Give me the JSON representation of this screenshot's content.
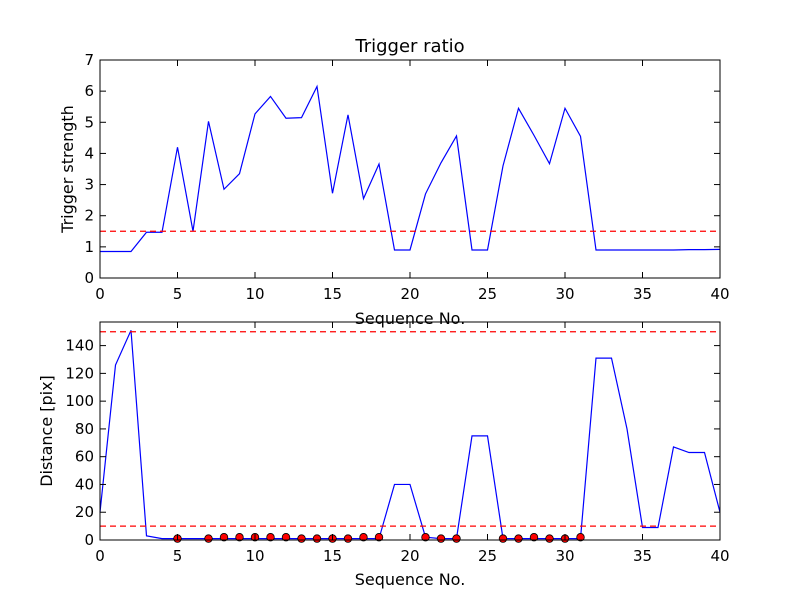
{
  "chart_data": [
    {
      "type": "line",
      "title": "Trigger ratio",
      "xlabel": "Sequence No.",
      "ylabel": "Trigger strength",
      "xlim": [
        0,
        40
      ],
      "ylim": [
        0,
        7
      ],
      "xticks": [
        "0",
        "5",
        "10",
        "15",
        "20",
        "25",
        "30",
        "35",
        "40"
      ],
      "yticks": [
        "0",
        "1",
        "2",
        "3",
        "4",
        "5",
        "6",
        "7"
      ],
      "grid": false,
      "series": [
        {
          "color": "#0000ff",
          "style": "solid",
          "x": [
            0,
            1,
            2,
            3,
            4,
            5,
            6,
            7,
            8,
            9,
            10,
            11,
            12,
            13,
            14,
            15,
            16,
            17,
            18,
            19,
            20,
            21,
            22,
            23,
            24,
            25,
            26,
            27,
            28,
            29,
            30,
            31,
            32,
            33,
            34,
            35,
            36,
            37,
            38,
            39,
            40
          ],
          "y": [
            0.85,
            0.85,
            0.85,
            1.47,
            1.47,
            4.2,
            1.5,
            5.03,
            2.85,
            3.35,
            5.27,
            5.83,
            5.13,
            5.15,
            6.15,
            2.72,
            5.24,
            2.55,
            3.66,
            0.9,
            0.9,
            2.7,
            3.7,
            4.56,
            0.9,
            0.9,
            3.6,
            5.45,
            4.58,
            3.67,
            5.45,
            4.55,
            0.9,
            0.9,
            0.9,
            0.9,
            0.9,
            0.9,
            0.91,
            0.91,
            0.92
          ]
        }
      ],
      "hlines": [
        {
          "y": 1.5,
          "color": "#ff0000",
          "style": "dashed"
        }
      ]
    },
    {
      "type": "line",
      "title": "",
      "xlabel": "Sequence No.",
      "ylabel": "Distance [pix]",
      "xlim": [
        0,
        40
      ],
      "ylim": [
        0,
        157
      ],
      "xticks": [
        "0",
        "5",
        "10",
        "15",
        "20",
        "25",
        "30",
        "35",
        "40"
      ],
      "yticks": [
        "0",
        "20",
        "40",
        "60",
        "80",
        "100",
        "120",
        "140"
      ],
      "grid": false,
      "series": [
        {
          "color": "#0000ff",
          "style": "solid",
          "x": [
            0,
            1,
            2,
            3,
            4,
            5,
            6,
            7,
            8,
            9,
            10,
            11,
            12,
            13,
            14,
            15,
            16,
            17,
            18,
            19,
            20,
            21,
            22,
            23,
            24,
            25,
            26,
            27,
            28,
            29,
            30,
            31,
            32,
            33,
            34,
            35,
            36,
            37,
            38,
            39,
            40
          ],
          "y": [
            20,
            126,
            151,
            3,
            1,
            1,
            1,
            1,
            1,
            1,
            1,
            1,
            1,
            1,
            1,
            1,
            1,
            1,
            1,
            40,
            40,
            2,
            1,
            1,
            75,
            75,
            1,
            1,
            1,
            1,
            1,
            1,
            131,
            131,
            80,
            9,
            9,
            67,
            63,
            63,
            20
          ]
        }
      ],
      "markers": {
        "color": "#ff0000",
        "x": [
          5,
          7,
          8,
          9,
          10,
          11,
          12,
          13,
          14,
          15,
          16,
          17,
          18,
          21,
          22,
          23,
          26,
          27,
          28,
          29,
          30,
          31
        ],
        "y": [
          1,
          1,
          2,
          2,
          2,
          2,
          2,
          1,
          1,
          1,
          1,
          2,
          2,
          2,
          1,
          1,
          1,
          1,
          2,
          1,
          1,
          2
        ]
      },
      "hlines": [
        {
          "y": 150,
          "color": "#ff0000",
          "style": "dashed"
        },
        {
          "y": 10,
          "color": "#ff0000",
          "style": "dashed"
        }
      ]
    }
  ]
}
